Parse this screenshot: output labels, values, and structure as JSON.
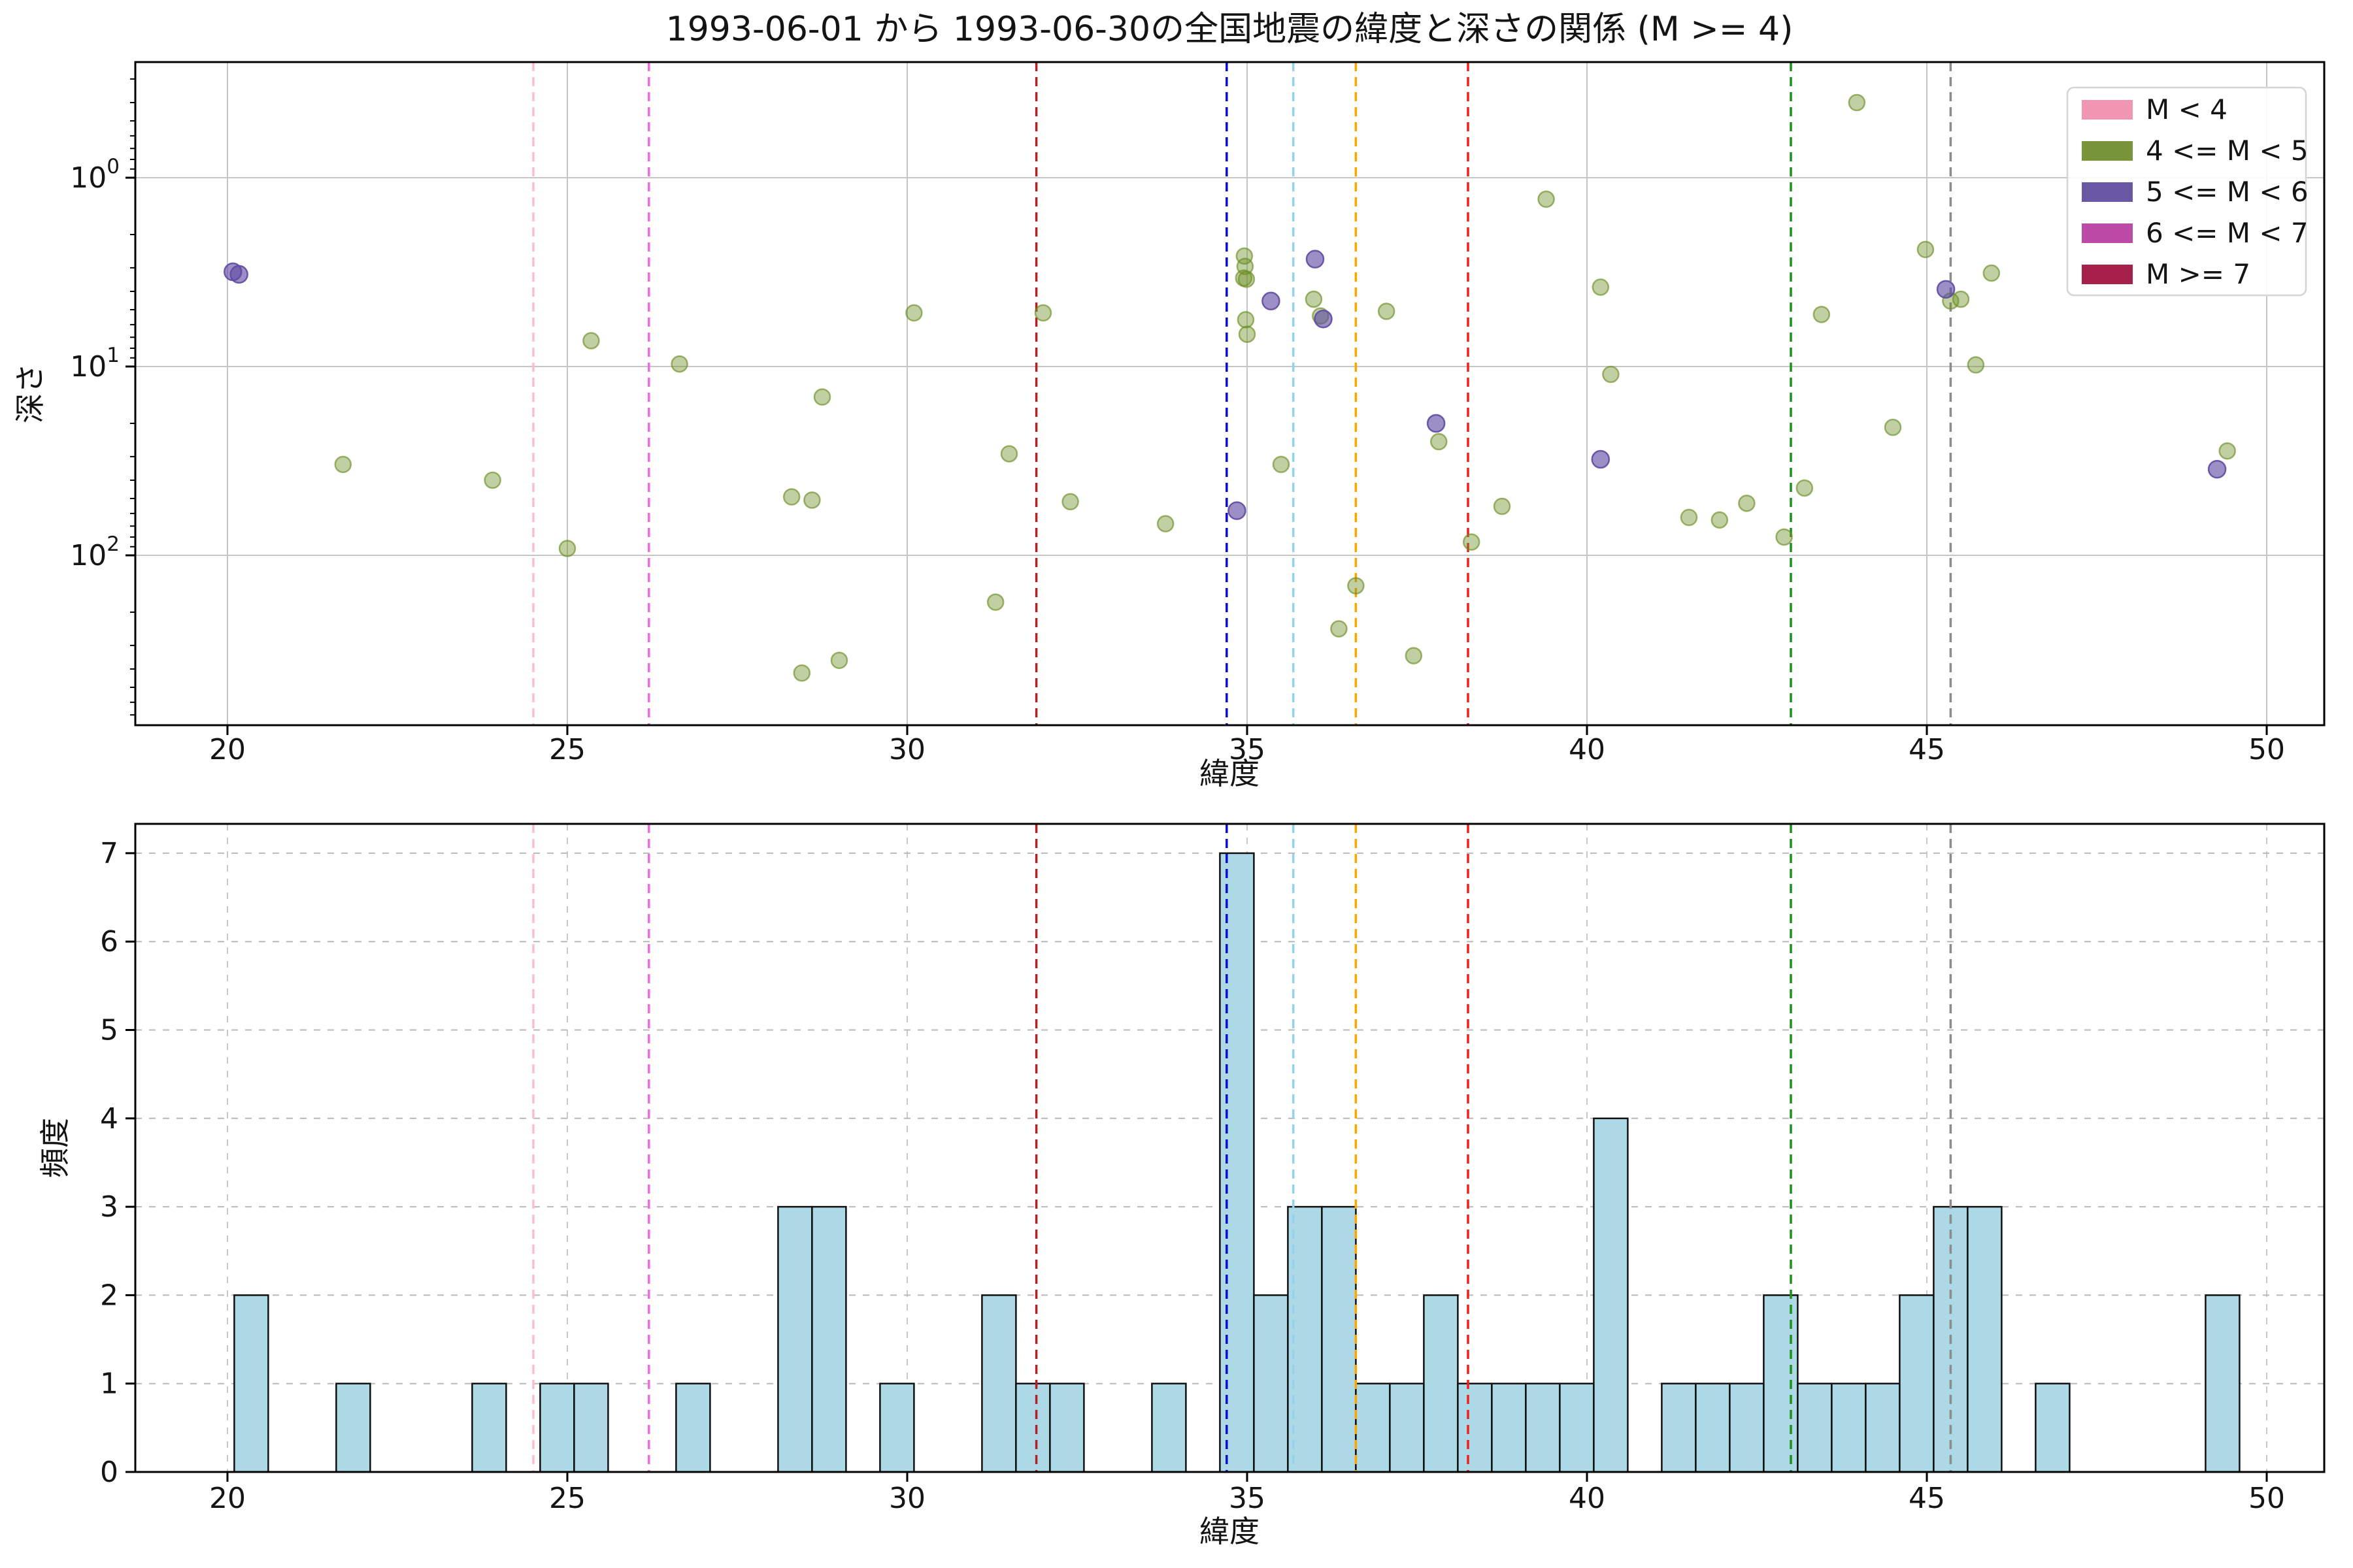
{
  "figure": {
    "title": "1993-06-01 から 1993-06-30の全国地震の緯度と深さの関係 (M >= 4)",
    "background": "#ffffff"
  },
  "scatter_plot": {
    "xlabel": "緯度",
    "ylabel": "深さ",
    "x_ticks": [
      20,
      25,
      30,
      35,
      40,
      45,
      50
    ],
    "y_ticks": [
      {
        "base": "10",
        "exp": "0",
        "value": 1
      },
      {
        "base": "10",
        "exp": "1",
        "value": 10
      },
      {
        "base": "10",
        "exp": "2",
        "value": 100
      }
    ]
  },
  "histogram": {
    "xlabel": "緯度",
    "ylabel": "頻度",
    "x_ticks": [
      20,
      25,
      30,
      35,
      40,
      45,
      50
    ],
    "y_ticks": [
      0,
      1,
      2,
      3,
      4,
      5,
      6,
      7
    ]
  },
  "legend": {
    "entries": [
      {
        "label": "M < 4",
        "color": "#f195b2"
      },
      {
        "label": "4 <= M < 5",
        "color": "#78953c"
      },
      {
        "label": "5 <= M < 6",
        "color": "#6a58a6"
      },
      {
        "label": "6 <= M < 7",
        "color": "#bb4ba6"
      },
      {
        "label": "M >= 7",
        "color": "#a7204a"
      }
    ]
  },
  "vlines": [
    {
      "lat": 24.5,
      "color": "#ffbdca",
      "name": "pink"
    },
    {
      "lat": 26.2,
      "color": "#ee6ae0",
      "name": "magenta"
    },
    {
      "lat": 31.9,
      "color": "#b22222",
      "name": "darkred"
    },
    {
      "lat": 34.7,
      "color": "#0a0ae0",
      "name": "blue"
    },
    {
      "lat": 35.68,
      "color": "#93d3ef",
      "name": "skyblue"
    },
    {
      "lat": 36.6,
      "color": "#ffa500",
      "name": "orange"
    },
    {
      "lat": 38.25,
      "color": "#f21f1f",
      "name": "red"
    },
    {
      "lat": 43.0,
      "color": "#1f8f1f",
      "name": "green"
    },
    {
      "lat": 45.35,
      "color": "#8c8c8c",
      "name": "gray"
    }
  ],
  "chart_data": [
    {
      "type": "scatter",
      "title": "1993-06-01 から 1993-06-30の全国地震の緯度と深さの関係 (M >= 4)",
      "xlabel": "緯度",
      "ylabel": "深さ",
      "x_range": [
        18.64,
        50.85
      ],
      "y_scale": "log",
      "y_inverted": true,
      "y_range": [
        0.244,
        790
      ],
      "grid": "solid gray, x every 5 lat, y every decade",
      "legend_position": "upper right",
      "series": [
        {
          "name": "4 <= M < 5",
          "color": "#6b8e23",
          "points": [
            [
              21.7,
              33
            ],
            [
              23.9,
              40
            ],
            [
              25.0,
              92
            ],
            [
              25.35,
              7.3
            ],
            [
              26.65,
              9.7
            ],
            [
              28.3,
              49
            ],
            [
              28.45,
              420
            ],
            [
              28.6,
              51
            ],
            [
              28.75,
              14.5
            ],
            [
              29.0,
              360
            ],
            [
              30.1,
              5.2
            ],
            [
              31.3,
              177
            ],
            [
              31.5,
              29
            ],
            [
              32.0,
              5.2
            ],
            [
              32.4,
              52
            ],
            [
              33.8,
              68
            ],
            [
              34.96,
              2.6
            ],
            [
              34.97,
              2.95
            ],
            [
              34.95,
              3.4
            ],
            [
              34.99,
              3.45
            ],
            [
              34.98,
              5.65
            ],
            [
              35.0,
              6.75
            ],
            [
              35.5,
              33
            ],
            [
              35.98,
              4.4
            ],
            [
              36.08,
              5.4
            ],
            [
              36.35,
              245
            ],
            [
              36.6,
              145
            ],
            [
              37.05,
              5.1
            ],
            [
              37.45,
              340
            ],
            [
              37.82,
              25
            ],
            [
              38.3,
              85
            ],
            [
              38.75,
              55
            ],
            [
              39.4,
              1.3
            ],
            [
              40.2,
              3.8
            ],
            [
              40.35,
              11
            ],
            [
              41.5,
              63
            ],
            [
              41.95,
              65
            ],
            [
              42.35,
              53
            ],
            [
              42.9,
              80
            ],
            [
              43.2,
              44
            ],
            [
              43.45,
              5.3
            ],
            [
              43.97,
              0.4
            ],
            [
              44.5,
              21
            ],
            [
              44.98,
              2.4
            ],
            [
              45.35,
              4.5
            ],
            [
              45.5,
              4.4
            ],
            [
              45.72,
              9.8
            ],
            [
              45.95,
              3.2
            ],
            [
              49.42,
              28
            ]
          ]
        },
        {
          "name": "5 <= M < 6",
          "color": "#5f4ba3",
          "points": [
            [
              20.08,
              3.15
            ],
            [
              20.17,
              3.25
            ],
            [
              34.85,
              58
            ],
            [
              35.35,
              4.5
            ],
            [
              36.0,
              2.7
            ],
            [
              36.12,
              5.6
            ],
            [
              37.78,
              20
            ],
            [
              40.2,
              31
            ],
            [
              45.28,
              3.9
            ],
            [
              49.27,
              35
            ]
          ]
        }
      ]
    },
    {
      "type": "bar",
      "xlabel": "緯度",
      "ylabel": "頻度",
      "x_range": [
        18.64,
        50.85
      ],
      "ylim": [
        0,
        7.33
      ],
      "bin_width": 0.5,
      "bar_color": "#add8e6",
      "grid": "dashed gray",
      "bars": [
        [
          20.1,
          2
        ],
        [
          21.6,
          1
        ],
        [
          23.6,
          1
        ],
        [
          24.6,
          1
        ],
        [
          25.1,
          1
        ],
        [
          26.6,
          1
        ],
        [
          28.1,
          3
        ],
        [
          28.6,
          3
        ],
        [
          29.6,
          1
        ],
        [
          31.1,
          2
        ],
        [
          31.6,
          1
        ],
        [
          32.1,
          1
        ],
        [
          33.6,
          1
        ],
        [
          34.6,
          7
        ],
        [
          35.1,
          2
        ],
        [
          35.6,
          3
        ],
        [
          36.1,
          3
        ],
        [
          36.6,
          1
        ],
        [
          37.1,
          1
        ],
        [
          37.6,
          2
        ],
        [
          38.1,
          1
        ],
        [
          38.6,
          1
        ],
        [
          39.1,
          1
        ],
        [
          39.6,
          1
        ],
        [
          40.1,
          4
        ],
        [
          41.1,
          1
        ],
        [
          41.6,
          1
        ],
        [
          42.1,
          1
        ],
        [
          42.6,
          2
        ],
        [
          43.1,
          1
        ],
        [
          43.6,
          1
        ],
        [
          44.1,
          1
        ],
        [
          44.6,
          2
        ],
        [
          45.1,
          3
        ],
        [
          45.6,
          3
        ],
        [
          46.6,
          1
        ],
        [
          49.1,
          2
        ]
      ]
    }
  ]
}
